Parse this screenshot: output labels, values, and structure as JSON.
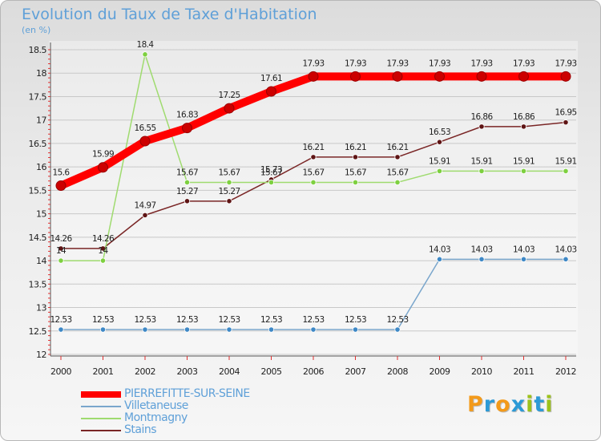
{
  "header": {
    "title": "Evolution du Taux de Taxe d'Habitation",
    "subtitle": "(en %)"
  },
  "logo": {
    "text": "Proxiti",
    "letters": [
      {
        "char": "P",
        "color": "#f39a1a"
      },
      {
        "char": "r",
        "color": "#2c9ad6"
      },
      {
        "char": "o",
        "color": "#f39a1a"
      },
      {
        "char": "x",
        "color": "#2c9ad6"
      },
      {
        "char": "i",
        "color": "#9cc21b"
      },
      {
        "char": "t",
        "color": "#2c9ad6"
      },
      {
        "char": "i",
        "color": "#9cc21b"
      }
    ]
  },
  "chart_data": {
    "type": "line",
    "title": "Evolution du Taux de Taxe d'Habitation",
    "subtitle": "(en %)",
    "xlabel": "",
    "ylabel": "",
    "x": [
      "2000",
      "2001",
      "2002",
      "2003",
      "2004",
      "2005",
      "2006",
      "2007",
      "2008",
      "2009",
      "2010",
      "2011",
      "2012"
    ],
    "ylim": [
      12,
      18.5
    ],
    "yticks": [
      "12",
      "12.5",
      "13",
      "13.5",
      "14",
      "14.5",
      "15",
      "15.5",
      "16",
      "16.5",
      "17",
      "17.5",
      "18",
      "18.5"
    ],
    "grid": "horizontal",
    "legend_position": "bottom-left",
    "series": [
      {
        "name": "PIERREFITTE-SUR-SEINE",
        "color": "#ff0000",
        "marker_color": "#cc0000",
        "emphasis": "thick",
        "values": [
          15.6,
          15.99,
          16.55,
          16.83,
          17.25,
          17.61,
          17.93,
          17.93,
          17.93,
          17.93,
          17.93,
          17.93,
          17.93
        ],
        "labels": [
          "15.6",
          "15.99",
          "16.55",
          "16.83",
          "17.25",
          "17.61",
          "17.93",
          "17.93",
          "17.93",
          "17.93",
          "17.93",
          "17.93",
          "17.93"
        ]
      },
      {
        "name": "Villetaneuse",
        "color": "#7aa6cc",
        "marker_color": "#3e88c6",
        "emphasis": "thin",
        "values": [
          12.53,
          12.53,
          12.53,
          12.53,
          12.53,
          12.53,
          12.53,
          12.53,
          12.53,
          14.03,
          14.03,
          14.03,
          14.03
        ],
        "labels": [
          "12.53",
          "12.53",
          "12.53",
          "12.53",
          "12.53",
          "12.53",
          "12.53",
          "12.53",
          "12.53",
          "14.03",
          "14.03",
          "14.03",
          "14.03"
        ]
      },
      {
        "name": "Montmagny",
        "color": "#9fdb6f",
        "marker_color": "#7ed040",
        "emphasis": "thin",
        "values": [
          14,
          14,
          18.4,
          15.67,
          15.67,
          15.67,
          15.67,
          15.67,
          15.67,
          15.91,
          15.91,
          15.91,
          15.91
        ],
        "labels": [
          "14",
          "14",
          "18.4",
          "15.67",
          "15.67",
          "15.67",
          "15.67",
          "15.67",
          "15.67",
          "15.91",
          "15.91",
          "15.91",
          "15.91"
        ]
      },
      {
        "name": "Stains",
        "color": "#7a2626",
        "marker_color": "#5e1414",
        "emphasis": "thin",
        "values": [
          14.26,
          14.26,
          14.97,
          15.27,
          15.27,
          15.73,
          16.21,
          16.21,
          16.21,
          16.53,
          16.86,
          16.86,
          16.95
        ],
        "labels": [
          "14.26",
          "14.26",
          "14.97",
          "15.27",
          "15.27",
          "15.73",
          "16.21",
          "16.21",
          "16.21",
          "16.53",
          "16.86",
          "16.86",
          "16.95"
        ]
      }
    ]
  }
}
